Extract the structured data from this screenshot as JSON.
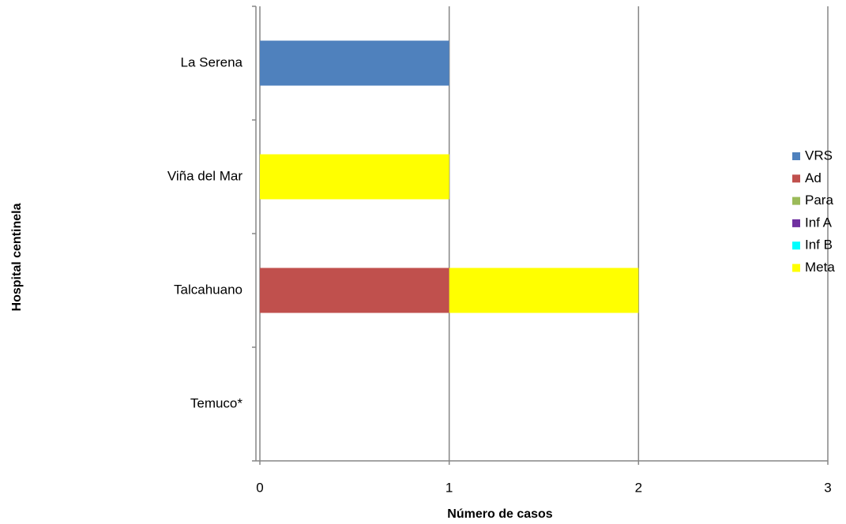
{
  "chart_data": {
    "type": "bar",
    "orientation": "horizontal",
    "stacked": true,
    "xlabel": "Número de casos",
    "ylabel": "Hospital centinela",
    "categories": [
      "La Serena",
      "Viña del Mar",
      "Talcahuano",
      "Temuco*"
    ],
    "series": [
      {
        "name": "VRS",
        "color": "#4f81bd",
        "values": [
          1,
          0,
          0,
          0
        ]
      },
      {
        "name": "Ad",
        "color": "#c0504d",
        "values": [
          0,
          0,
          1,
          0
        ]
      },
      {
        "name": "Para",
        "color": "#9bbb59",
        "values": [
          0,
          0,
          0,
          0
        ]
      },
      {
        "name": "Inf A",
        "color": "#7030a0",
        "values": [
          0,
          0,
          0,
          0
        ]
      },
      {
        "name": "Inf B",
        "color": "#00ffff",
        "values": [
          0,
          0,
          0,
          0
        ]
      },
      {
        "name": "Meta",
        "color": "#ffff00",
        "values": [
          0,
          1,
          1,
          0
        ]
      }
    ],
    "xlim": [
      0,
      3
    ],
    "xticks": [
      0,
      1,
      2,
      3
    ],
    "grid": true,
    "legend": "right"
  }
}
